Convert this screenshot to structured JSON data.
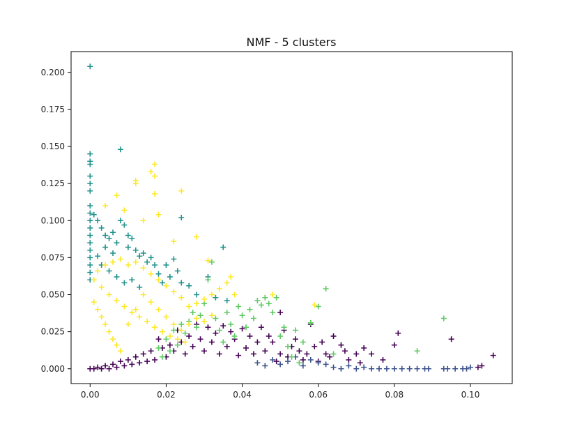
{
  "chart_data": {
    "type": "scatter",
    "title": "NMF - 5 clusters",
    "xlabel": "",
    "ylabel": "",
    "xlim": [
      -0.005,
      0.111
    ],
    "ylim": [
      -0.01,
      0.214
    ],
    "x_ticks": [
      0.0,
      0.02,
      0.04,
      0.06,
      0.08,
      0.1
    ],
    "x_tick_labels": [
      "0.00",
      "0.02",
      "0.04",
      "0.06",
      "0.08",
      "0.10"
    ],
    "y_ticks": [
      0.0,
      0.025,
      0.05,
      0.075,
      0.1,
      0.125,
      0.15,
      0.175,
      0.2
    ],
    "y_tick_labels": [
      "0.000",
      "0.025",
      "0.050",
      "0.075",
      "0.100",
      "0.125",
      "0.150",
      "0.175",
      "0.200"
    ],
    "marker": "+",
    "grid": false,
    "legend": "none",
    "clusters": [
      {
        "color": "#440154",
        "points": [
          [
            0.106,
            0.009
          ],
          [
            0.103,
            0.002
          ],
          [
            0.102,
            0.001
          ],
          [
            0.095,
            0.02
          ],
          [
            0.081,
            0.024
          ],
          [
            0.08,
            0.016
          ],
          [
            0.077,
            0.006
          ],
          [
            0.074,
            0.01
          ],
          [
            0.072,
            0.014
          ],
          [
            0.071,
            0.004
          ],
          [
            0.07,
            0.01
          ],
          [
            0.068,
            0.006
          ],
          [
            0.067,
            0.012
          ],
          [
            0.066,
            0.016
          ],
          [
            0.064,
            0.022
          ],
          [
            0.063,
            0.008
          ],
          [
            0.062,
            0.01
          ],
          [
            0.061,
            0.018
          ],
          [
            0.06,
            0.005
          ],
          [
            0.059,
            0.015
          ],
          [
            0.058,
            0.03
          ],
          [
            0.057,
            0.01
          ],
          [
            0.056,
            0.006
          ],
          [
            0.055,
            0.012
          ],
          [
            0.054,
            0.02
          ],
          [
            0.053,
            0.015
          ],
          [
            0.052,
            0.008
          ],
          [
            0.051,
            0.026
          ],
          [
            0.05,
            0.038
          ],
          [
            0.05,
            0.01
          ],
          [
            0.049,
            0.005
          ],
          [
            0.048,
            0.018
          ],
          [
            0.047,
            0.022
          ],
          [
            0.046,
            0.012
          ],
          [
            0.045,
            0.028
          ],
          [
            0.044,
            0.018
          ],
          [
            0.043,
            0.01
          ],
          [
            0.042,
            0.022
          ],
          [
            0.041,
            0.014
          ],
          [
            0.04,
            0.027
          ],
          [
            0.039,
            0.009
          ],
          [
            0.038,
            0.02
          ],
          [
            0.037,
            0.025
          ],
          [
            0.036,
            0.015
          ],
          [
            0.035,
            0.029
          ],
          [
            0.034,
            0.01
          ],
          [
            0.033,
            0.024
          ],
          [
            0.032,
            0.018
          ],
          [
            0.031,
            0.028
          ],
          [
            0.03,
            0.012
          ],
          [
            0.029,
            0.02
          ],
          [
            0.028,
            0.03
          ],
          [
            0.027,
            0.015
          ],
          [
            0.026,
            0.022
          ],
          [
            0.025,
            0.01
          ],
          [
            0.024,
            0.018
          ],
          [
            0.023,
            0.026
          ],
          [
            0.022,
            0.012
          ],
          [
            0.021,
            0.016
          ],
          [
            0.02,
            0.008
          ],
          [
            0.019,
            0.014
          ],
          [
            0.018,
            0.02
          ],
          [
            0.017,
            0.006
          ],
          [
            0.016,
            0.012
          ],
          [
            0.015,
            0.005
          ],
          [
            0.014,
            0.01
          ],
          [
            0.013,
            0.004
          ],
          [
            0.012,
            0.008
          ],
          [
            0.011,
            0.003
          ],
          [
            0.01,
            0.006
          ],
          [
            0.009,
            0.002
          ],
          [
            0.008,
            0.005
          ],
          [
            0.007,
            0.001
          ],
          [
            0.006,
            0.003
          ],
          [
            0.005,
            0.0
          ],
          [
            0.004,
            0.002
          ],
          [
            0.003,
            0.0
          ],
          [
            0.002,
            0.001
          ],
          [
            0.001,
            0.0
          ],
          [
            0.0,
            0.0
          ]
        ]
      },
      {
        "color": "#3b528b",
        "points": [
          [
            0.1,
            0.001
          ],
          [
            0.099,
            0.0
          ],
          [
            0.098,
            0.0
          ],
          [
            0.096,
            0.0
          ],
          [
            0.094,
            0.0
          ],
          [
            0.093,
            0.0
          ],
          [
            0.089,
            0.0
          ],
          [
            0.088,
            0.0
          ],
          [
            0.086,
            0.0
          ],
          [
            0.084,
            0.0
          ],
          [
            0.082,
            0.0
          ],
          [
            0.08,
            0.0
          ],
          [
            0.078,
            0.0
          ],
          [
            0.076,
            0.0
          ],
          [
            0.074,
            0.0
          ],
          [
            0.072,
            0.001
          ],
          [
            0.07,
            0.0
          ],
          [
            0.068,
            0.002
          ],
          [
            0.066,
            0.0
          ],
          [
            0.064,
            0.001
          ],
          [
            0.062,
            0.003
          ],
          [
            0.06,
            0.004
          ],
          [
            0.058,
            0.006
          ],
          [
            0.056,
            0.002
          ],
          [
            0.054,
            0.008
          ],
          [
            0.052,
            0.005
          ],
          [
            0.05,
            0.003
          ],
          [
            0.048,
            0.006
          ],
          [
            0.046,
            0.002
          ],
          [
            0.044,
            0.004
          ]
        ]
      },
      {
        "color": "#21918c",
        "points": [
          [
            0.0,
            0.204
          ],
          [
            0.0,
            0.145
          ],
          [
            0.0,
            0.14
          ],
          [
            0.0,
            0.138
          ],
          [
            0.0,
            0.13
          ],
          [
            0.0,
            0.125
          ],
          [
            0.0,
            0.12
          ],
          [
            0.0,
            0.11
          ],
          [
            0.0,
            0.105
          ],
          [
            0.0,
            0.1
          ],
          [
            0.0,
            0.095
          ],
          [
            0.0,
            0.09
          ],
          [
            0.0,
            0.085
          ],
          [
            0.0,
            0.08
          ],
          [
            0.0,
            0.075
          ],
          [
            0.0,
            0.07
          ],
          [
            0.0,
            0.065
          ],
          [
            0.0,
            0.06
          ],
          [
            0.008,
            0.148
          ],
          [
            0.024,
            0.102
          ],
          [
            0.035,
            0.082
          ],
          [
            0.001,
            0.104
          ],
          [
            0.002,
            0.1
          ],
          [
            0.003,
            0.095
          ],
          [
            0.004,
            0.09
          ],
          [
            0.005,
            0.088
          ],
          [
            0.006,
            0.092
          ],
          [
            0.007,
            0.085
          ],
          [
            0.008,
            0.1
          ],
          [
            0.009,
            0.097
          ],
          [
            0.01,
            0.09
          ],
          [
            0.011,
            0.088
          ],
          [
            0.012,
            0.08
          ],
          [
            0.013,
            0.076
          ],
          [
            0.014,
            0.078
          ],
          [
            0.015,
            0.072
          ],
          [
            0.016,
            0.075
          ],
          [
            0.017,
            0.07
          ],
          [
            0.018,
            0.064
          ],
          [
            0.019,
            0.058
          ],
          [
            0.02,
            0.07
          ],
          [
            0.021,
            0.062
          ],
          [
            0.022,
            0.074
          ],
          [
            0.023,
            0.066
          ],
          [
            0.024,
            0.058
          ],
          [
            0.026,
            0.056
          ],
          [
            0.028,
            0.05
          ],
          [
            0.031,
            0.062
          ],
          [
            0.033,
            0.048
          ],
          [
            0.036,
            0.046
          ],
          [
            0.003,
            0.07
          ],
          [
            0.005,
            0.066
          ],
          [
            0.007,
            0.062
          ],
          [
            0.009,
            0.058
          ],
          [
            0.011,
            0.06
          ],
          [
            0.013,
            0.055
          ],
          [
            0.006,
            0.078
          ],
          [
            0.004,
            0.082
          ],
          [
            0.002,
            0.076
          ],
          [
            0.01,
            0.082
          ]
        ]
      },
      {
        "color": "#5ec962",
        "points": [
          [
            0.093,
            0.034
          ],
          [
            0.086,
            0.012
          ],
          [
            0.062,
            0.054
          ],
          [
            0.06,
            0.042
          ],
          [
            0.058,
            0.031
          ],
          [
            0.056,
            0.018
          ],
          [
            0.054,
            0.026
          ],
          [
            0.052,
            0.015
          ],
          [
            0.05,
            0.022
          ],
          [
            0.048,
            0.038
          ],
          [
            0.047,
            0.044
          ],
          [
            0.046,
            0.048
          ],
          [
            0.045,
            0.043
          ],
          [
            0.044,
            0.046
          ],
          [
            0.043,
            0.034
          ],
          [
            0.042,
            0.04
          ],
          [
            0.041,
            0.028
          ],
          [
            0.04,
            0.036
          ],
          [
            0.039,
            0.042
          ],
          [
            0.038,
            0.022
          ],
          [
            0.037,
            0.03
          ],
          [
            0.036,
            0.038
          ],
          [
            0.035,
            0.018
          ],
          [
            0.034,
            0.026
          ],
          [
            0.033,
            0.034
          ],
          [
            0.032,
            0.072
          ],
          [
            0.031,
            0.06
          ],
          [
            0.03,
            0.044
          ],
          [
            0.029,
            0.036
          ],
          [
            0.028,
            0.028
          ],
          [
            0.027,
            0.038
          ],
          [
            0.026,
            0.032
          ],
          [
            0.025,
            0.024
          ],
          [
            0.024,
            0.03
          ],
          [
            0.023,
            0.016
          ],
          [
            0.022,
            0.026
          ],
          [
            0.021,
            0.012
          ],
          [
            0.02,
            0.02
          ],
          [
            0.019,
            0.008
          ],
          [
            0.018,
            0.014
          ],
          [
            0.049,
            0.048
          ],
          [
            0.051,
            0.028
          ],
          [
            0.053,
            0.008
          ],
          [
            0.055,
            0.004
          ],
          [
            0.064,
            0.01
          ]
        ]
      },
      {
        "color": "#fde725",
        "points": [
          [
            0.017,
            0.138
          ],
          [
            0.016,
            0.133
          ],
          [
            0.017,
            0.13
          ],
          [
            0.012,
            0.127
          ],
          [
            0.012,
            0.125
          ],
          [
            0.024,
            0.12
          ],
          [
            0.017,
            0.118
          ],
          [
            0.007,
            0.117
          ],
          [
            0.004,
            0.11
          ],
          [
            0.009,
            0.107
          ],
          [
            0.018,
            0.104
          ],
          [
            0.014,
            0.1
          ],
          [
            0.028,
            0.089
          ],
          [
            0.022,
            0.086
          ],
          [
            0.031,
            0.073
          ],
          [
            0.059,
            0.043
          ],
          [
            0.048,
            0.05
          ],
          [
            0.038,
            0.05
          ],
          [
            0.037,
            0.062
          ],
          [
            0.036,
            0.058
          ],
          [
            0.034,
            0.054
          ],
          [
            0.032,
            0.05
          ],
          [
            0.03,
            0.047
          ],
          [
            0.028,
            0.044
          ],
          [
            0.026,
            0.042
          ],
          [
            0.024,
            0.048
          ],
          [
            0.022,
            0.052
          ],
          [
            0.02,
            0.056
          ],
          [
            0.018,
            0.06
          ],
          [
            0.016,
            0.064
          ],
          [
            0.014,
            0.068
          ],
          [
            0.012,
            0.072
          ],
          [
            0.01,
            0.07
          ],
          [
            0.008,
            0.074
          ],
          [
            0.006,
            0.072
          ],
          [
            0.004,
            0.07
          ],
          [
            0.002,
            0.066
          ],
          [
            0.001,
            0.06
          ],
          [
            0.003,
            0.055
          ],
          [
            0.005,
            0.05
          ],
          [
            0.007,
            0.046
          ],
          [
            0.009,
            0.042
          ],
          [
            0.011,
            0.038
          ],
          [
            0.013,
            0.035
          ],
          [
            0.015,
            0.032
          ],
          [
            0.017,
            0.028
          ],
          [
            0.019,
            0.025
          ],
          [
            0.021,
            0.022
          ],
          [
            0.023,
            0.02
          ],
          [
            0.025,
            0.018
          ],
          [
            0.001,
            0.045
          ],
          [
            0.002,
            0.04
          ],
          [
            0.003,
            0.035
          ],
          [
            0.004,
            0.03
          ],
          [
            0.005,
            0.025
          ],
          [
            0.006,
            0.02
          ],
          [
            0.007,
            0.016
          ],
          [
            0.008,
            0.012
          ],
          [
            0.01,
            0.03
          ],
          [
            0.012,
            0.04
          ],
          [
            0.014,
            0.05
          ],
          [
            0.016,
            0.045
          ],
          [
            0.018,
            0.04
          ],
          [
            0.02,
            0.035
          ],
          [
            0.022,
            0.03
          ],
          [
            0.024,
            0.026
          ],
          [
            0.026,
            0.03
          ],
          [
            0.028,
            0.034
          ],
          [
            0.03,
            0.032
          ],
          [
            0.032,
            0.036
          ]
        ]
      }
    ]
  }
}
